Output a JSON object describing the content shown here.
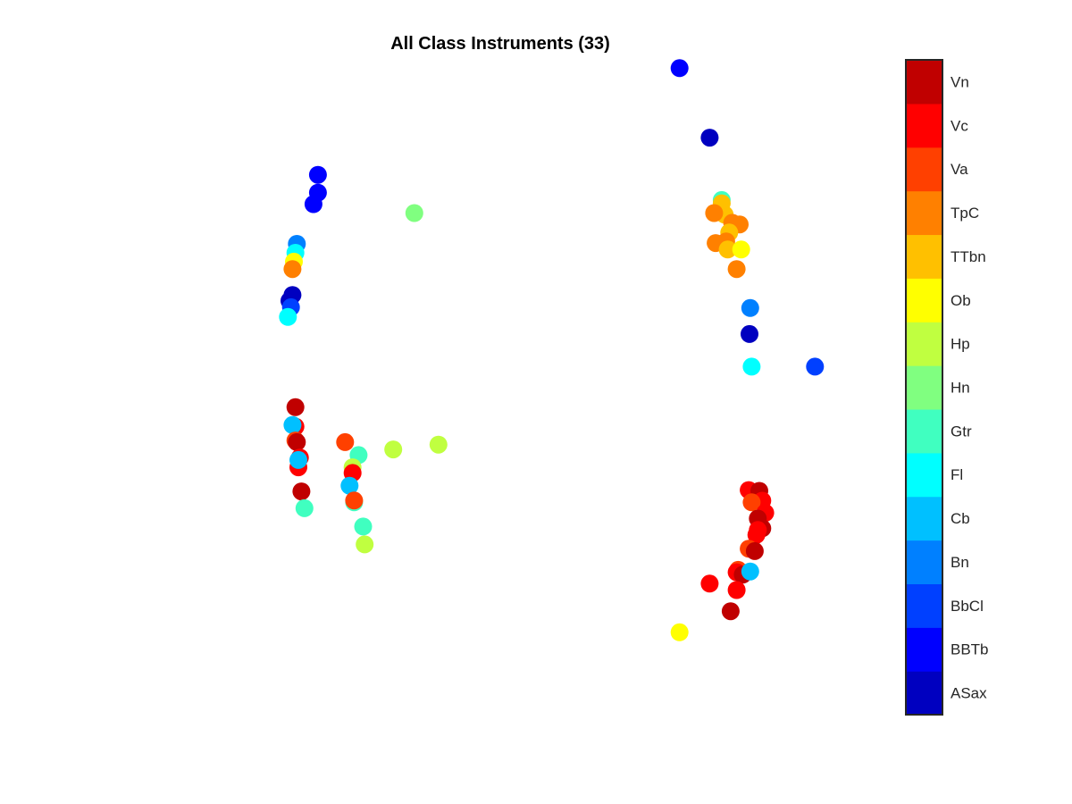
{
  "chart_data": {
    "type": "scatter",
    "title": "All Class Instruments (33)",
    "xlabel": "",
    "ylabel": "",
    "axes_visible": false,
    "grid": false,
    "xlim": [
      0,
      100
    ],
    "ylim": [
      0,
      100
    ],
    "colorbar": {
      "placement": "right",
      "classes": [
        {
          "name": "ASax",
          "color": "#0000C0"
        },
        {
          "name": "BBTb",
          "color": "#0000FF"
        },
        {
          "name": "BbCl",
          "color": "#0040FF"
        },
        {
          "name": "Bn",
          "color": "#0080FF"
        },
        {
          "name": "Cb",
          "color": "#00C0FF"
        },
        {
          "name": "Fl",
          "color": "#00FFFF"
        },
        {
          "name": "Gtr",
          "color": "#40FFC0"
        },
        {
          "name": "Hn",
          "color": "#80FF80"
        },
        {
          "name": "Hp",
          "color": "#C0FF40"
        },
        {
          "name": "Ob",
          "color": "#FFFF00"
        },
        {
          "name": "TTbn",
          "color": "#FFC000"
        },
        {
          "name": "TpC",
          "color": "#FF8000"
        },
        {
          "name": "Va",
          "color": "#FF4000"
        },
        {
          "name": "Vc",
          "color": "#FF0000"
        },
        {
          "name": "Vn",
          "color": "#C00000"
        }
      ]
    },
    "points": [
      {
        "x": 75.24,
        "y": 95.38,
        "cls": "BBTb"
      },
      {
        "x": 79.43,
        "y": 85.46,
        "cls": "ASax"
      },
      {
        "x": 81.1,
        "y": 76.57,
        "cls": "Gtr"
      },
      {
        "x": 81.1,
        "y": 76.1,
        "cls": "TTbn"
      },
      {
        "x": 81.52,
        "y": 74.48,
        "cls": "TTbn"
      },
      {
        "x": 80.05,
        "y": 74.71,
        "cls": "TpC"
      },
      {
        "x": 82.56,
        "y": 73.33,
        "cls": "TpC"
      },
      {
        "x": 83.6,
        "y": 73.1,
        "cls": "TpC"
      },
      {
        "x": 82.15,
        "y": 71.94,
        "cls": "TTbn"
      },
      {
        "x": 81.73,
        "y": 70.67,
        "cls": "TpC"
      },
      {
        "x": 80.26,
        "y": 70.43,
        "cls": "TpC"
      },
      {
        "x": 81.94,
        "y": 69.51,
        "cls": "TTbn"
      },
      {
        "x": 83.81,
        "y": 69.51,
        "cls": "Ob"
      },
      {
        "x": 83.18,
        "y": 66.73,
        "cls": "TpC"
      },
      {
        "x": 85.07,
        "y": 61.17,
        "cls": "Bn"
      },
      {
        "x": 84.97,
        "y": 57.47,
        "cls": "ASax"
      },
      {
        "x": 85.27,
        "y": 52.82,
        "cls": "Fl"
      },
      {
        "x": 94.07,
        "y": 52.82,
        "cls": "BbCl"
      },
      {
        "x": 84.86,
        "y": 35.21,
        "cls": "Vc"
      },
      {
        "x": 86.33,
        "y": 35.09,
        "cls": "Vn"
      },
      {
        "x": 86.74,
        "y": 33.7,
        "cls": "Vc"
      },
      {
        "x": 85.27,
        "y": 33.47,
        "cls": "Va"
      },
      {
        "x": 87.16,
        "y": 31.96,
        "cls": "Vc"
      },
      {
        "x": 86.12,
        "y": 31.15,
        "cls": "Vn"
      },
      {
        "x": 86.74,
        "y": 29.76,
        "cls": "Vn"
      },
      {
        "x": 86.12,
        "y": 29.52,
        "cls": "Vc"
      },
      {
        "x": 85.92,
        "y": 28.83,
        "cls": "Vc"
      },
      {
        "x": 84.86,
        "y": 26.85,
        "cls": "Va"
      },
      {
        "x": 85.7,
        "y": 26.51,
        "cls": "Vn"
      },
      {
        "x": 83.39,
        "y": 23.84,
        "cls": "Va"
      },
      {
        "x": 83.18,
        "y": 23.49,
        "cls": "Vc"
      },
      {
        "x": 84.02,
        "y": 23.15,
        "cls": "Vn"
      },
      {
        "x": 85.07,
        "y": 23.61,
        "cls": "Cb"
      },
      {
        "x": 79.43,
        "y": 21.87,
        "cls": "Vc"
      },
      {
        "x": 83.18,
        "y": 20.95,
        "cls": "Vc"
      },
      {
        "x": 82.35,
        "y": 17.94,
        "cls": "Vn"
      },
      {
        "x": 75.24,
        "y": 14.93,
        "cls": "Ob"
      },
      {
        "x": 24.96,
        "y": 80.16,
        "cls": "BBTb"
      },
      {
        "x": 24.96,
        "y": 77.62,
        "cls": "BBTb"
      },
      {
        "x": 24.33,
        "y": 75.99,
        "cls": "BBTb"
      },
      {
        "x": 38.36,
        "y": 74.71,
        "cls": "Hn"
      },
      {
        "x": 22.03,
        "y": 70.32,
        "cls": "Bn"
      },
      {
        "x": 21.82,
        "y": 69.05,
        "cls": "Fl"
      },
      {
        "x": 21.61,
        "y": 67.78,
        "cls": "Ob"
      },
      {
        "x": 21.41,
        "y": 66.73,
        "cls": "TpC"
      },
      {
        "x": 21.41,
        "y": 63.03,
        "cls": "ASax"
      },
      {
        "x": 20.99,
        "y": 62.21,
        "cls": "ASax"
      },
      {
        "x": 21.2,
        "y": 61.29,
        "cls": "BbCl"
      },
      {
        "x": 20.78,
        "y": 59.9,
        "cls": "Fl"
      },
      {
        "x": 21.82,
        "y": 47.03,
        "cls": "Vn"
      },
      {
        "x": 21.82,
        "y": 44.25,
        "cls": "Vc"
      },
      {
        "x": 21.41,
        "y": 44.49,
        "cls": "Cb"
      },
      {
        "x": 21.82,
        "y": 42.28,
        "cls": "Va"
      },
      {
        "x": 22.03,
        "y": 42.05,
        "cls": "Vn"
      },
      {
        "x": 22.45,
        "y": 39.85,
        "cls": "Vc"
      },
      {
        "x": 22.24,
        "y": 38.46,
        "cls": "Vc"
      },
      {
        "x": 22.24,
        "y": 39.5,
        "cls": "Cb"
      },
      {
        "x": 22.66,
        "y": 35.02,
        "cls": "Vn"
      },
      {
        "x": 23.08,
        "y": 32.63,
        "cls": "Gtr"
      },
      {
        "x": 28.73,
        "y": 42.05,
        "cls": "Va"
      },
      {
        "x": 30.61,
        "y": 40.2,
        "cls": "Gtr"
      },
      {
        "x": 29.78,
        "y": 38.46,
        "cls": "Hp"
      },
      {
        "x": 29.78,
        "y": 37.65,
        "cls": "Vc"
      },
      {
        "x": 29.36,
        "y": 35.84,
        "cls": "Cb"
      },
      {
        "x": 29.99,
        "y": 33.47,
        "cls": "Gtr"
      },
      {
        "x": 29.99,
        "y": 33.72,
        "cls": "Va"
      },
      {
        "x": 31.24,
        "y": 30.01,
        "cls": "Gtr"
      },
      {
        "x": 31.45,
        "y": 27.47,
        "cls": "Hp"
      },
      {
        "x": 35.43,
        "y": 41.01,
        "cls": "Hp"
      },
      {
        "x": 41.71,
        "y": 41.7,
        "cls": "Hp"
      }
    ]
  }
}
